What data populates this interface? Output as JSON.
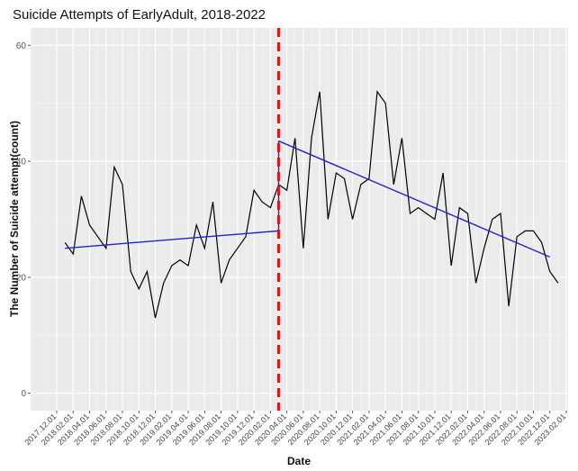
{
  "chart_data": {
    "type": "line",
    "title": "Suicide Attempts of EarlyAdult, 2018-2022",
    "xlabel": "Date",
    "ylabel": "The Number of Suicide attempt(count)",
    "ylim": [
      -3,
      63
    ],
    "yticks": [
      0,
      20,
      40,
      60
    ],
    "grid": true,
    "x_tick_labels": [
      "2017.12.01",
      "2018.02.01",
      "2018.04.01",
      "2018.06.01",
      "2018.08.01",
      "2018.10.01",
      "2018.12.01",
      "2019.02.01",
      "2019.04.01",
      "2019.06.01",
      "2019.08.01",
      "2019.10.01",
      "2019.12.01",
      "2020.02.01",
      "2020.04.01",
      "2020.06.01",
      "2020.08.01",
      "2020.10.01",
      "2020.12.01",
      "2021.02.01",
      "2021.04.01",
      "2021.06.01",
      "2021.08.01",
      "2021.10.01",
      "2021.12.01",
      "2022.02.01",
      "2022.04.01",
      "2022.06.01",
      "2022.08.01",
      "2022.10.01",
      "2022.12.01",
      "2023.02.01"
    ],
    "x_start": "2017.12.01",
    "series": [
      {
        "color": "#000000",
        "values": [
          26,
          24,
          34,
          29,
          27,
          25,
          39,
          36,
          21,
          18,
          21,
          13,
          19,
          22,
          23,
          22,
          29,
          25,
          33,
          19,
          23,
          25,
          27,
          35,
          33,
          32,
          36,
          35,
          44,
          25,
          44,
          52,
          30,
          38,
          37,
          30,
          36,
          37,
          52,
          50,
          36,
          44,
          31,
          32,
          31,
          30,
          38,
          22,
          32,
          31,
          19,
          25,
          30,
          31,
          15,
          27,
          28,
          28,
          26,
          21,
          19
        ]
      },
      {
        "color": "#2323c8",
        "segments": [
          {
            "from": "2018.01.01",
            "to": "2020.03.01",
            "y_start": 25.0,
            "y_end": 28.0
          },
          {
            "from": "2020.03.01",
            "to": "2022.12.01",
            "y_start": 43.5,
            "y_end": 23.5
          }
        ]
      }
    ],
    "annotations": [
      {
        "type": "vline",
        "at": "2020.03.01",
        "color": "#ee1111",
        "style": "dashed"
      }
    ]
  }
}
